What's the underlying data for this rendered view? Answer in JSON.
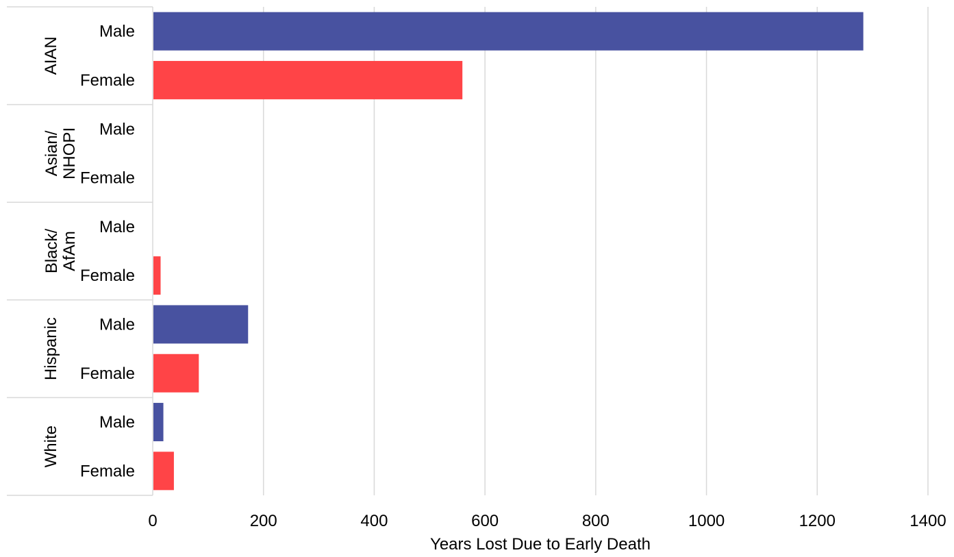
{
  "chart_data": {
    "type": "bar",
    "orientation": "horizontal",
    "xlabel": "Years Lost Due to Early Death",
    "ylabel": "",
    "xlim": [
      0,
      1400
    ],
    "xticks": [
      "0",
      "200",
      "400",
      "600",
      "800",
      "1000",
      "1200",
      "1400"
    ],
    "grid": "vertical",
    "legend": "none",
    "colors": {
      "Male": "#4852a0",
      "Female": "#ff4447"
    },
    "groups": [
      {
        "label_lines": [
          "AIAN"
        ],
        "rows": [
          {
            "label": "Male",
            "value": 1282
          },
          {
            "label": "Female",
            "value": 558
          }
        ]
      },
      {
        "label_lines": [
          "Asian/",
          "NHOPI"
        ],
        "rows": [
          {
            "label": "Male",
            "value": 0
          },
          {
            "label": "Female",
            "value": 0
          }
        ]
      },
      {
        "label_lines": [
          "Black/",
          "AfAm"
        ],
        "rows": [
          {
            "label": "Male",
            "value": 0
          },
          {
            "label": "Female",
            "value": 13
          }
        ]
      },
      {
        "label_lines": [
          "Hispanic"
        ],
        "rows": [
          {
            "label": "Male",
            "value": 171
          },
          {
            "label": "Female",
            "value": 82
          }
        ]
      },
      {
        "label_lines": [
          "White"
        ],
        "rows": [
          {
            "label": "Male",
            "value": 18
          },
          {
            "label": "Female",
            "value": 37
          }
        ]
      }
    ]
  }
}
